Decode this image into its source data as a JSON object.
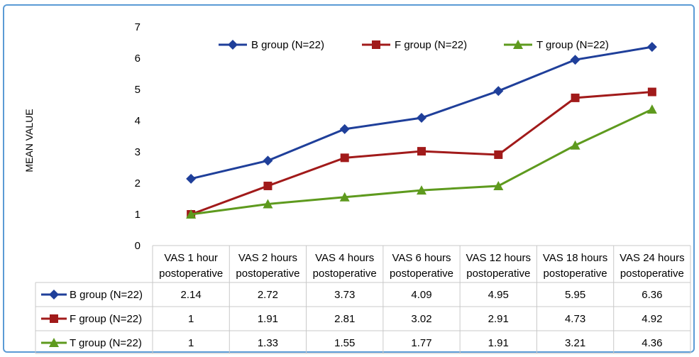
{
  "chart_data": {
    "type": "line",
    "ylabel": "MEAN VALUE",
    "ylim": [
      0,
      7
    ],
    "y_ticks": [
      0,
      1,
      2,
      3,
      4,
      5,
      6,
      7
    ],
    "grid": "vertical category separators",
    "legend_position": "top",
    "categories": [
      [
        "VAS 1 hour",
        "postoperative"
      ],
      [
        "VAS 2 hours",
        "postoperative"
      ],
      [
        "VAS 4 hours",
        "postoperative"
      ],
      [
        "VAS 6 hours",
        "postoperative"
      ],
      [
        "VAS 12 hours",
        "postoperative"
      ],
      [
        "VAS 18 hours",
        "postoperative"
      ],
      [
        "VAS 24 hours",
        "postoperative"
      ]
    ],
    "series": [
      {
        "name": "B group (N=22)",
        "color": "#1f3f9a",
        "marker": "diamond",
        "values": [
          2.14,
          2.72,
          3.73,
          4.09,
          4.95,
          5.95,
          6.36
        ],
        "labels": [
          "2.14",
          "2.72",
          "3.73",
          "4.09",
          "4.95",
          "5.95",
          "6.36"
        ]
      },
      {
        "name": "F group (N=22)",
        "color": "#a11a1a",
        "marker": "square",
        "values": [
          1,
          1.91,
          2.81,
          3.02,
          2.91,
          4.73,
          4.92
        ],
        "labels": [
          "1",
          "1.91",
          "2.81",
          "3.02",
          "2.91",
          "4.73",
          "4.92"
        ]
      },
      {
        "name": "T group (N=22)",
        "color": "#5e9a1e",
        "marker": "triangle",
        "values": [
          1,
          1.33,
          1.55,
          1.77,
          1.91,
          3.21,
          4.36
        ],
        "labels": [
          "1",
          "1.33",
          "1.55",
          "1.77",
          "1.91",
          "3.21",
          "4.36"
        ]
      }
    ]
  }
}
